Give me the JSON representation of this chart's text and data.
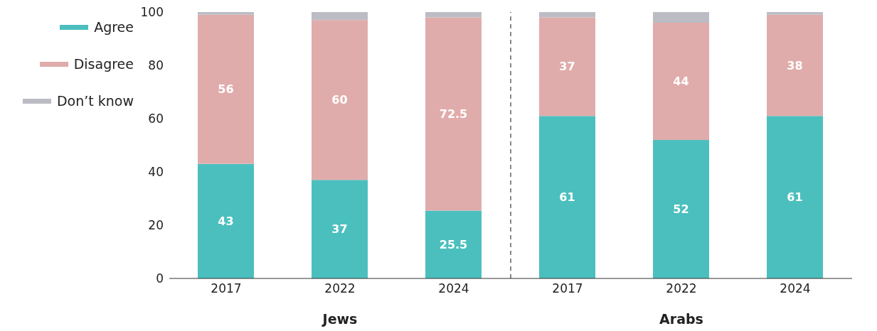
{
  "chart_data": {
    "type": "bar",
    "stacked": true,
    "categories": [
      "2017",
      "2022",
      "2024",
      "2017",
      "2022",
      "2024"
    ],
    "series": [
      {
        "name": "Agree",
        "color": "#4bbfbe",
        "values": [
          43,
          37,
          25.5,
          61,
          52,
          61
        ],
        "value_labels": [
          "43",
          "37",
          "25.5",
          "61",
          "52",
          "61"
        ]
      },
      {
        "name": "Disagree",
        "color": "#e0acab",
        "values": [
          56,
          60,
          72.5,
          37,
          44,
          38
        ],
        "value_labels": [
          "56",
          "60",
          "72.5",
          "37",
          "44",
          "38"
        ]
      },
      {
        "name": "Don’t know",
        "color": "#bcbcc4",
        "values": [
          1,
          3,
          2,
          2,
          4,
          1
        ]
      }
    ],
    "ylim": [
      0,
      100
    ],
    "yticks": [
      0,
      20,
      40,
      60,
      80,
      100
    ],
    "legend": "top left",
    "annotations": [
      "Jews",
      "Arabs"
    ]
  }
}
